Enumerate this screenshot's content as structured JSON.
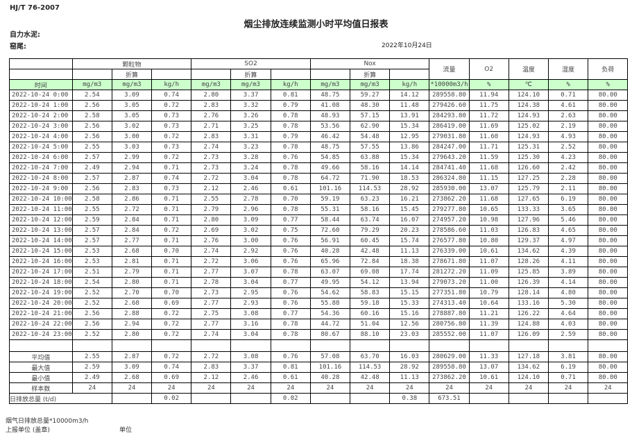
{
  "header": {
    "standard": "HJ/T  76-2007",
    "title": "烟尘排放连续监测小时平均值日报表",
    "company": "自力水泥:",
    "kiln": "窑尾:",
    "date": "2022年10月24日"
  },
  "table": {
    "groups": [
      "颗粒物",
      "SO2",
      "Nox",
      "流量",
      "O2",
      "温度",
      "湿度",
      "负荷"
    ],
    "converted": "折算",
    "time_label": "时间",
    "units": [
      "mg/m3",
      "mg/m3",
      "kg/h",
      "mg/m3",
      "mg/m3",
      "kg/h",
      "mg/m3",
      "mg/m3",
      "kg/h",
      "*10000m3/h",
      "%",
      "℃",
      "%",
      "%"
    ],
    "rows": [
      [
        "2022-10-24 0:00",
        "2.54",
        "3.09",
        "0.74",
        "2.80",
        "3.37",
        "0.81",
        "48.75",
        "59.27",
        "14.12",
        "289558.80",
        "11.94",
        "124.10",
        "0.71",
        "80.00"
      ],
      [
        "2022-10-24 1:00",
        "2.56",
        "3.05",
        "0.72",
        "2.83",
        "3.32",
        "0.79",
        "41.08",
        "48.30",
        "11.48",
        "279426.60",
        "11.75",
        "124.38",
        "4.61",
        "80.00"
      ],
      [
        "2022-10-24 2:00",
        "2.58",
        "3.05",
        "0.73",
        "2.76",
        "3.26",
        "0.78",
        "48.93",
        "57.15",
        "13.91",
        "284293.80",
        "11.72",
        "124.93",
        "2.63",
        "80.00"
      ],
      [
        "2022-10-24 3:00",
        "2.56",
        "3.02",
        "0.73",
        "2.71",
        "3.25",
        "0.78",
        "53.56",
        "62.90",
        "15.34",
        "286419.00",
        "11.69",
        "125.02",
        "2.19",
        "80.00"
      ],
      [
        "2022-10-24 4:00",
        "2.56",
        "3.00",
        "0.72",
        "2.83",
        "3.31",
        "0.79",
        "46.42",
        "54.48",
        "12.95",
        "279031.80",
        "11.60",
        "124.93",
        "4.93",
        "80.00"
      ],
      [
        "2022-10-24 5:00",
        "2.55",
        "3.03",
        "0.73",
        "2.74",
        "3.23",
        "0.78",
        "48.75",
        "57.55",
        "13.86",
        "284247.00",
        "11.71",
        "125.31",
        "2.52",
        "80.00"
      ],
      [
        "2022-10-24 6:00",
        "2.57",
        "2.99",
        "0.72",
        "2.73",
        "3.28",
        "0.76",
        "54.85",
        "63.88",
        "15.34",
        "279643.20",
        "11.59",
        "125.30",
        "4.23",
        "80.00"
      ],
      [
        "2022-10-24 7:00",
        "2.49",
        "2.94",
        "0.71",
        "2.73",
        "3.24",
        "0.78",
        "49.66",
        "58.16",
        "14.14",
        "284741.40",
        "11.68",
        "126.60",
        "2.42",
        "80.00"
      ],
      [
        "2022-10-24 8:00",
        "2.57",
        "2.87",
        "0.74",
        "2.72",
        "3.04",
        "0.78",
        "64.72",
        "71.90",
        "18.53",
        "286324.80",
        "11.15",
        "127.25",
        "2.28",
        "80.00"
      ],
      [
        "2022-10-24 9:00",
        "2.56",
        "2.83",
        "0.73",
        "2.12",
        "2.46",
        "0.61",
        "101.16",
        "114.53",
        "28.92",
        "285930.00",
        "13.07",
        "125.79",
        "2.11",
        "80.00"
      ],
      [
        "2022-10-24 10:00",
        "2.58",
        "2.86",
        "0.71",
        "2.55",
        "2.78",
        "0.70",
        "59.19",
        "63.23",
        "16.21",
        "273862.20",
        "11.68",
        "127.65",
        "6.19",
        "80.00"
      ],
      [
        "2022-10-24 11:00",
        "2.55",
        "2.72",
        "0.71",
        "2.79",
        "2.96",
        "0.78",
        "55.31",
        "58.16",
        "15.45",
        "279277.80",
        "10.65",
        "133.33",
        "3.65",
        "80.00"
      ],
      [
        "2022-10-24 12:00",
        "2.59",
        "2.84",
        "0.71",
        "2.80",
        "3.09",
        "0.77",
        "58.44",
        "63.74",
        "16.07",
        "274957.20",
        "10.98",
        "127.96",
        "5.46",
        "80.00"
      ],
      [
        "2022-10-24 13:00",
        "2.57",
        "2.84",
        "0.72",
        "2.69",
        "3.02",
        "0.75",
        "72.60",
        "79.29",
        "20.23",
        "278586.60",
        "11.03",
        "126.83",
        "4.65",
        "80.00"
      ],
      [
        "2022-10-24 14:00",
        "2.57",
        "2.77",
        "0.71",
        "2.76",
        "3.00",
        "0.76",
        "56.91",
        "60.45",
        "15.74",
        "276577.80",
        "10.80",
        "129.37",
        "4.97",
        "80.00"
      ],
      [
        "2022-10-24 15:00",
        "2.53",
        "2.68",
        "0.70",
        "2.74",
        "2.92",
        "0.76",
        "40.28",
        "42.48",
        "11.13",
        "276339.00",
        "10.61",
        "134.62",
        "4.39",
        "80.00"
      ],
      [
        "2022-10-24 16:00",
        "2.53",
        "2.81",
        "0.71",
        "2.72",
        "3.06",
        "0.76",
        "65.96",
        "72.84",
        "18.38",
        "278671.80",
        "11.07",
        "128.26",
        "4.11",
        "80.00"
      ],
      [
        "2022-10-24 17:00",
        "2.51",
        "2.79",
        "0.71",
        "2.77",
        "3.07",
        "0.78",
        "63.07",
        "69.08",
        "17.74",
        "281272.20",
        "11.09",
        "125.85",
        "3.89",
        "80.00"
      ],
      [
        "2022-10-24 18:00",
        "2.54",
        "2.80",
        "0.71",
        "2.78",
        "3.04",
        "0.77",
        "49.95",
        "54.12",
        "13.94",
        "279073.20",
        "11.00",
        "126.39",
        "4.14",
        "80.00"
      ],
      [
        "2022-10-24 19:00",
        "2.52",
        "2.70",
        "0.70",
        "2.73",
        "2.95",
        "0.76",
        "54.62",
        "58.83",
        "15.15",
        "277351.80",
        "10.79",
        "128.14",
        "4.80",
        "80.00"
      ],
      [
        "2022-10-24 20:00",
        "2.52",
        "2.68",
        "0.69",
        "2.77",
        "2.93",
        "0.76",
        "55.88",
        "59.18",
        "15.33",
        "274313.40",
        "10.64",
        "133.16",
        "5.30",
        "80.00"
      ],
      [
        "2022-10-24 21:00",
        "2.56",
        "2.88",
        "0.72",
        "2.75",
        "3.08",
        "0.77",
        "54.36",
        "60.16",
        "15.16",
        "278887.80",
        "11.21",
        "126.22",
        "4.64",
        "80.00"
      ],
      [
        "2022-10-24 22:00",
        "2.56",
        "2.94",
        "0.72",
        "2.77",
        "3.16",
        "0.78",
        "44.72",
        "51.04",
        "12.56",
        "280756.80",
        "11.39",
        "124.88",
        "4.03",
        "80.00"
      ],
      [
        "2022-10-24 23:00",
        "2.52",
        "2.80",
        "0.72",
        "2.74",
        "3.04",
        "0.78",
        "80.67",
        "88.10",
        "23.03",
        "285552.00",
        "11.07",
        "126.09",
        "2.59",
        "80.00"
      ]
    ],
    "stats": [
      [
        "平均值",
        "2.55",
        "2.87",
        "0.72",
        "2.72",
        "3.08",
        "0.76",
        "57.08",
        "63.70",
        "16.03",
        "280629.00",
        "11.33",
        "127.18",
        "3.81",
        "80.00"
      ],
      [
        "最大值",
        "2.59",
        "3.09",
        "0.74",
        "2.83",
        "3.37",
        "0.81",
        "101.16",
        "114.53",
        "28.92",
        "289558.80",
        "13.07",
        "134.62",
        "6.19",
        "80.00"
      ],
      [
        "最小值",
        "2.49",
        "2.68",
        "0.69",
        "2.12",
        "2.46",
        "0.61",
        "40.28",
        "42.48",
        "11.13",
        "273862.20",
        "10.61",
        "124.10",
        "0.71",
        "80.00"
      ],
      [
        "样本数",
        "24",
        "24",
        "24",
        "24",
        "24",
        "24",
        "24",
        "24",
        "24",
        "24",
        "24",
        "24",
        "24",
        "24"
      ]
    ],
    "daily_total": {
      "label": "日排放总量 (t/d)",
      "values": [
        "",
        "0.02",
        "",
        "",
        "0.02",
        "",
        "",
        "0.38",
        "673.51",
        "",
        "",
        "",
        ""
      ]
    }
  },
  "footer": {
    "flue_total": "烟气日排放总量*10000m3/h",
    "report_unit": "上报单位 (盖章)",
    "unit": "单位"
  }
}
